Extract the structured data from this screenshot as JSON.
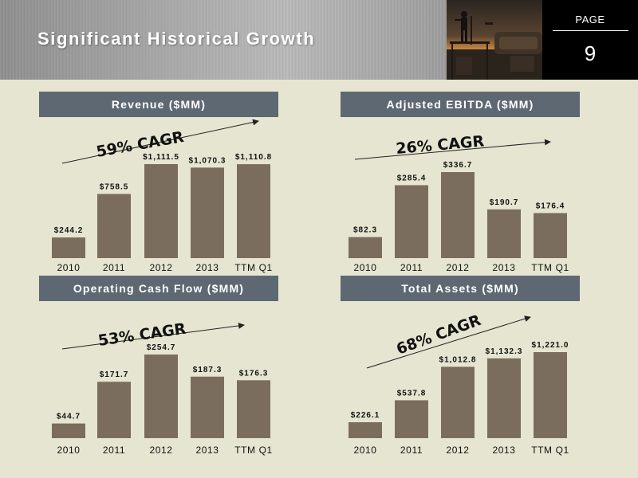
{
  "slide": {
    "title": "Significant Historical Growth",
    "page_label": "PAGE",
    "page_number": "9"
  },
  "colors": {
    "bar": "#7b6d5d",
    "title_bar": "#5e6873",
    "background": "#e5e5d1"
  },
  "chart_data": [
    {
      "type": "bar",
      "title": "Revenue ($MM)",
      "categories": [
        "2010",
        "2011",
        "2012",
        "2013",
        "TTM Q1"
      ],
      "values": [
        244.2,
        758.5,
        1111.5,
        1070.3,
        1110.8
      ],
      "labels": [
        "$244.2",
        "$758.5",
        "$1,111.5",
        "$1,070.3",
        "$1,110.8"
      ],
      "annotation": "59% CAGR"
    },
    {
      "type": "bar",
      "title": "Adjusted EBITDA ($MM)",
      "categories": [
        "2010",
        "2011",
        "2012",
        "2013",
        "TTM Q1"
      ],
      "values": [
        82.3,
        285.4,
        336.7,
        190.7,
        176.4
      ],
      "labels": [
        "$82.3",
        "$285.4",
        "$336.7",
        "$190.7",
        "$176.4"
      ],
      "annotation": "26% CAGR"
    },
    {
      "type": "bar",
      "title": "Operating Cash Flow ($MM)",
      "categories": [
        "2010",
        "2011",
        "2012",
        "2013",
        "TTM Q1"
      ],
      "values": [
        44.7,
        171.7,
        254.7,
        187.3,
        176.3
      ],
      "labels": [
        "$44.7",
        "$171.7",
        "$254.7",
        "$187.3",
        "$176.3"
      ],
      "annotation": "53% CAGR"
    },
    {
      "type": "bar",
      "title": "Total Assets ($MM)",
      "categories": [
        "2010",
        "2011",
        "2012",
        "2013",
        "TTM Q1"
      ],
      "values": [
        226.1,
        537.8,
        1012.8,
        1132.3,
        1221.0
      ],
      "labels": [
        "$226.1",
        "$537.8",
        "$1,012.8",
        "$1,132.3",
        "$1,221.0"
      ],
      "annotation": "68% CAGR"
    }
  ]
}
